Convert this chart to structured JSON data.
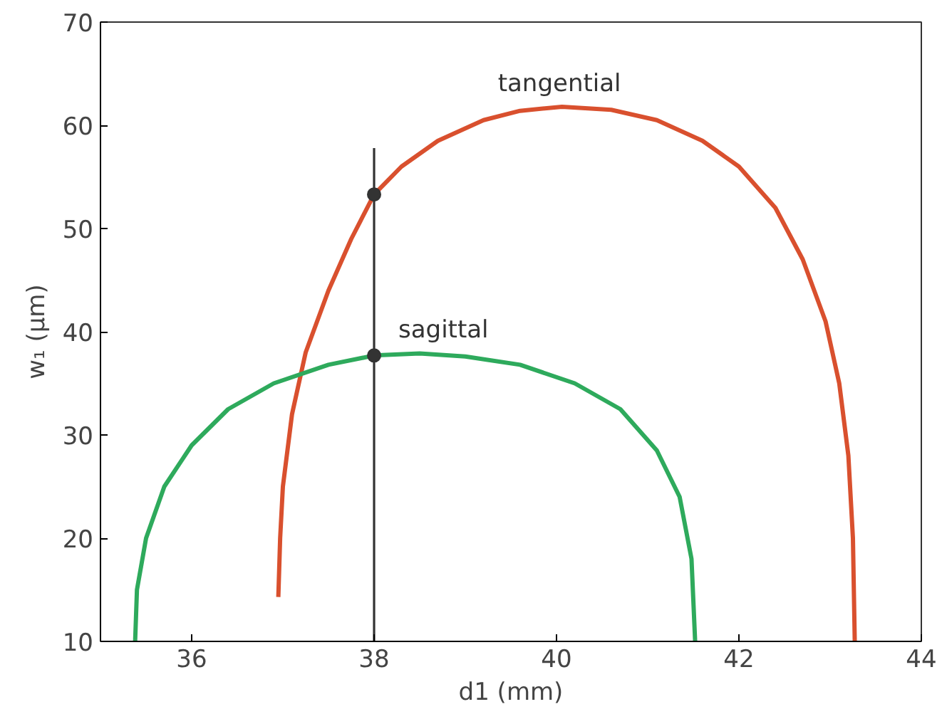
{
  "chart_data": {
    "type": "line",
    "xlabel": "d1 (mm)",
    "ylabel": "w₁ (μm)",
    "xlim": [
      35,
      44
    ],
    "ylim": [
      10,
      70
    ],
    "xticks": [
      36,
      38,
      40,
      42,
      44
    ],
    "yticks": [
      10,
      20,
      30,
      40,
      50,
      60,
      70
    ],
    "grid": false,
    "marker": "none",
    "line_style": "solid",
    "series": [
      {
        "name": "tangential",
        "color": "#d9502e",
        "x": [
          36.95,
          36.97,
          37.0,
          37.1,
          37.25,
          37.5,
          37.75,
          38.0,
          38.3,
          38.7,
          39.2,
          39.6,
          40.06,
          40.6,
          41.1,
          41.6,
          42.0,
          42.4,
          42.7,
          42.95,
          43.1,
          43.2,
          43.25,
          43.27
        ],
        "values": [
          14.3,
          20,
          25,
          32,
          38,
          44,
          49,
          53.3,
          56,
          58.5,
          60.5,
          61.4,
          61.8,
          61.5,
          60.5,
          58.5,
          56,
          52,
          47,
          41,
          35,
          28,
          20,
          10
        ]
      },
      {
        "name": "sagittal",
        "color": "#2eaa5c",
        "x": [
          35.38,
          35.4,
          35.5,
          35.7,
          36.0,
          36.4,
          36.9,
          37.5,
          38.0,
          38.5,
          39.0,
          39.6,
          40.2,
          40.7,
          41.1,
          41.35,
          41.48,
          41.52
        ],
        "values": [
          10,
          15,
          20,
          25,
          29,
          32.5,
          35,
          36.8,
          37.7,
          37.9,
          37.6,
          36.8,
          35,
          32.5,
          28.5,
          24,
          18,
          10
        ]
      },
      {
        "type": "line",
        "color": "#333333",
        "x": [
          38,
          38,
          38,
          38
        ],
        "values": [
          10,
          37.7,
          53.3,
          57.8
        ]
      },
      {
        "type": "scatter",
        "color": "#333333",
        "marker": "circle",
        "x": [
          38,
          38
        ],
        "values": [
          53.3,
          37.7
        ]
      }
    ]
  }
}
